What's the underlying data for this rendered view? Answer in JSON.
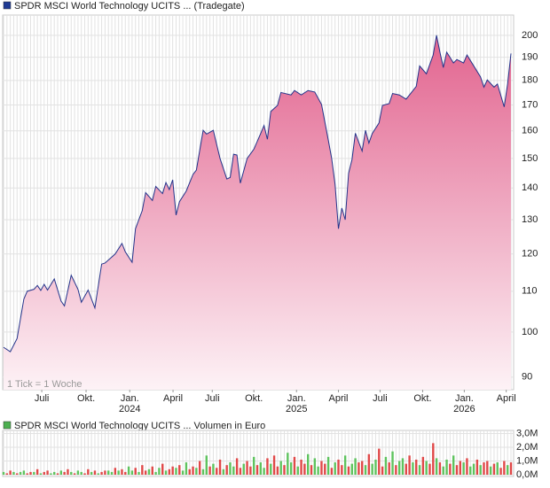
{
  "chart_data": [
    {
      "type": "area",
      "title": "SPDR MSCI World Technology UCITS ... (Tradegate)",
      "annotation": "1 Tick = 1 Woche",
      "color": "#1f3a93",
      "line_color": "#23338a",
      "fill_top": "#e2648f",
      "fill_bottom": "#fdf2f6",
      "log_scale": true,
      "grid": true,
      "x": [
        0,
        2,
        4,
        6,
        7,
        9,
        10,
        11,
        12,
        13,
        15,
        17,
        18,
        20,
        22,
        23,
        25,
        27,
        29,
        30,
        33,
        35,
        36,
        38,
        39,
        41,
        42,
        44,
        45,
        47,
        48,
        49,
        50,
        51,
        52,
        54,
        56,
        57,
        59,
        60,
        62,
        64,
        66,
        67,
        68,
        69,
        70,
        72,
        74,
        76,
        77,
        78,
        79,
        81,
        82,
        85,
        86,
        88,
        90,
        92,
        94,
        96,
        97,
        98,
        99,
        100,
        101,
        102,
        103,
        104,
        106,
        107,
        108,
        109,
        111,
        112,
        114,
        115,
        117,
        119,
        120,
        122,
        123,
        125,
        127,
        128,
        129,
        130,
        131,
        133,
        134,
        136,
        137,
        139,
        141,
        142,
        143,
        145,
        146,
        148,
        149,
        150
      ],
      "values": [
        96.5,
        95.5,
        98.5,
        108,
        110,
        110.5,
        111.5,
        110.2,
        111.8,
        110.3,
        113.2,
        107.5,
        106.3,
        114.2,
        110.5,
        107.2,
        110.3,
        105.8,
        117.2,
        117.5,
        120,
        123,
        120.6,
        117.7,
        127.3,
        132.8,
        138.5,
        136,
        140.5,
        138.2,
        141.8,
        139.5,
        142.7,
        131.4,
        135.6,
        139,
        144.5,
        146,
        160.2,
        158.8,
        160.2,
        150,
        143,
        143.5,
        151.5,
        151.2,
        141.6,
        150,
        153.3,
        159,
        162,
        156.9,
        167.4,
        169.8,
        175,
        174,
        175.8,
        174,
        175.8,
        175.2,
        170.2,
        156.6,
        150,
        141.2,
        127.3,
        133.6,
        130,
        144.9,
        149.6,
        159.1,
        152.6,
        160.2,
        155.5,
        159,
        163,
        169.8,
        170.5,
        174.6,
        174,
        172.3,
        174,
        177.5,
        186.2,
        182.8,
        191,
        200,
        192.3,
        185.5,
        192.3,
        187.5,
        189,
        187.5,
        191,
        186.2,
        181.5,
        177.2,
        180.2,
        177.2,
        178.5,
        169.2,
        178.5,
        191.7
      ],
      "xlim": [
        0,
        150
      ],
      "xticks": [
        {
          "value": 11.3,
          "label": "Juli"
        },
        {
          "value": 24.4,
          "label": "Okt."
        },
        {
          "value": 37.3,
          "label": "Jan."
        },
        {
          "value": 50.1,
          "label": "April"
        },
        {
          "value": 61.7,
          "label": "Juli"
        },
        {
          "value": 74,
          "label": "Okt."
        },
        {
          "value": 86.6,
          "label": "Jan."
        },
        {
          "value": 99,
          "label": "April"
        },
        {
          "value": 111.3,
          "label": "Juli"
        },
        {
          "value": 123.9,
          "label": "Okt."
        },
        {
          "value": 136.2,
          "label": "Jan."
        },
        {
          "value": 148.6,
          "label": "April"
        }
      ],
      "year_labels": [
        {
          "value": 37.3,
          "label": "2024"
        },
        {
          "value": 86.6,
          "label": "2025"
        },
        {
          "value": 136.2,
          "label": "2026"
        }
      ],
      "ylim": [
        87.4,
        209.7
      ],
      "yticks": [
        90,
        100,
        110,
        120,
        130,
        140,
        150,
        160,
        170,
        180,
        190,
        200
      ]
    },
    {
      "type": "bar",
      "title": "SPDR MSCI World Technology UCITS ... Volumen in Euro",
      "color": "#4caf50",
      "bar_colors": [
        "#5ec35e",
        "#e04848"
      ],
      "bar_color_index": [
        0,
        1,
        1,
        0,
        1,
        0,
        0,
        1,
        1,
        0,
        1,
        0,
        1,
        1,
        0,
        0,
        1,
        0,
        1,
        1,
        0,
        1,
        0,
        0,
        1,
        1,
        0,
        1,
        0,
        1,
        1,
        0,
        0,
        1,
        0,
        1,
        1,
        0,
        0,
        1,
        0,
        1,
        1,
        0,
        1,
        0,
        0,
        1,
        0,
        1,
        1,
        0,
        1,
        0,
        0,
        1,
        1,
        0,
        1,
        0,
        0,
        1,
        0,
        1,
        1,
        0,
        1,
        0,
        0,
        1,
        1,
        0,
        1,
        1,
        0,
        1,
        0,
        0,
        1,
        0,
        1,
        1,
        0,
        1,
        0,
        0,
        1,
        0,
        1,
        1,
        0,
        1,
        0,
        0,
        1,
        1,
        0,
        1,
        0,
        1,
        1,
        0,
        1,
        0,
        0,
        1,
        1,
        0,
        1,
        0,
        0,
        1,
        1,
        0,
        1,
        0,
        1,
        0,
        0,
        1,
        1,
        0,
        1,
        0,
        1,
        0,
        1,
        1,
        0,
        1,
        0,
        0,
        1,
        0,
        1,
        1,
        0,
        1,
        0,
        0,
        1,
        0,
        1,
        1,
        0,
        1,
        0,
        1,
        1,
        0,
        1
      ],
      "values": [
        0.2,
        0.1,
        0.3,
        0.2,
        0.1,
        0.2,
        0.3,
        0.1,
        0.2,
        0.2,
        0.4,
        0.1,
        0.2,
        0.3,
        0.1,
        0.2,
        0.1,
        0.3,
        0.2,
        0.4,
        0.2,
        0.1,
        0.3,
        0.2,
        0.1,
        0.4,
        0.2,
        0.3,
        0.1,
        0.2,
        0.3,
        0.3,
        0.2,
        0.5,
        0.3,
        0.4,
        0.2,
        0.6,
        0.3,
        0.5,
        0.2,
        0.7,
        0.3,
        0.4,
        0.6,
        0.2,
        0.5,
        0.8,
        0.3,
        0.4,
        0.6,
        0.5,
        0.7,
        0.3,
        0.9,
        0.4,
        0.6,
        0.5,
        1.0,
        0.4,
        1.4,
        0.6,
        0.8,
        0.5,
        1.1,
        0.4,
        0.7,
        0.9,
        0.6,
        1.2,
        0.5,
        0.8,
        1.0,
        0.6,
        1.3,
        0.7,
        0.9,
        0.5,
        1.2,
        0.8,
        1.4,
        0.6,
        1.0,
        0.7,
        1.6,
        0.9,
        1.3,
        0.6,
        1.1,
        0.8,
        1.5,
        0.7,
        1.2,
        0.6,
        1.0,
        0.8,
        1.3,
        0.5,
        0.9,
        1.1,
        0.7,
        1.4,
        0.6,
        0.8,
        1.2,
        0.9,
        1.0,
        0.7,
        1.5,
        0.8,
        1.1,
        1.9,
        0.6,
        1.3,
        0.9,
        1.7,
        0.7,
        1.0,
        1.2,
        0.8,
        1.4,
        0.9,
        1.1,
        0.7,
        1.3,
        1.0,
        0.8,
        2.3,
        1.2,
        0.9,
        0.6,
        1.1,
        0.8,
        1.4,
        0.7,
        1.0,
        0.9,
        1.2,
        0.6,
        0.8,
        1.1,
        0.7,
        0.9,
        1.0,
        0.6,
        0.8,
        0.9,
        0.5,
        1.0,
        0.7,
        0.9
      ],
      "xlim": [
        0,
        150
      ],
      "ylim": [
        0,
        3.1
      ],
      "yticks": [
        {
          "value": 0,
          "label": "0,0M"
        },
        {
          "value": 1,
          "label": "1,0M"
        },
        {
          "value": 2,
          "label": "2,0M"
        },
        {
          "value": 3,
          "label": "3,0M"
        }
      ]
    }
  ]
}
